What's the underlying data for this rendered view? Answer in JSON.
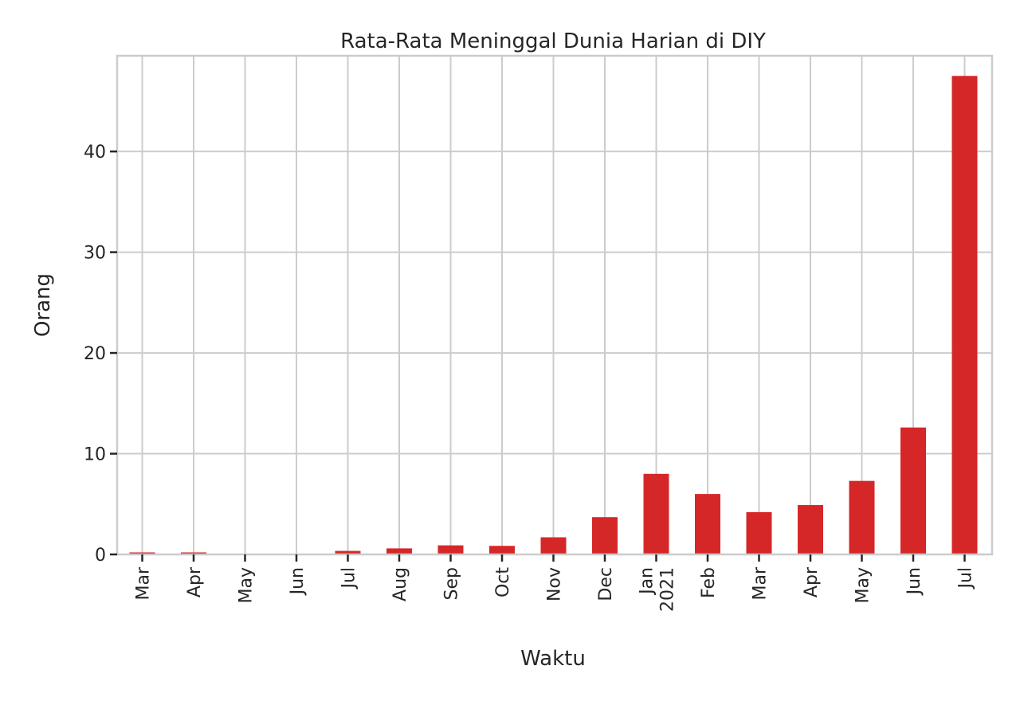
{
  "chart_data": {
    "type": "bar",
    "title": "Rata-Rata Meninggal Dunia Harian di DIY",
    "xlabel": "Waktu",
    "ylabel": "Orang",
    "categories": [
      "Mar",
      "Apr",
      "May",
      "Jun",
      "Jul",
      "Aug",
      "Sep",
      "Oct",
      "Nov",
      "Dec",
      "Jan\n2021",
      "Feb",
      "Mar",
      "Apr",
      "May",
      "Jun",
      "Jul"
    ],
    "values": [
      0.2,
      0.2,
      0.0,
      0.0,
      0.35,
      0.6,
      0.9,
      0.85,
      1.7,
      3.7,
      8.0,
      6.0,
      4.2,
      4.9,
      7.3,
      12.6,
      47.5
    ],
    "ylim": [
      0,
      49.5
    ],
    "yticks": [
      0,
      10,
      20,
      30,
      40
    ],
    "grid": true,
    "bar_color": "#d62728"
  }
}
